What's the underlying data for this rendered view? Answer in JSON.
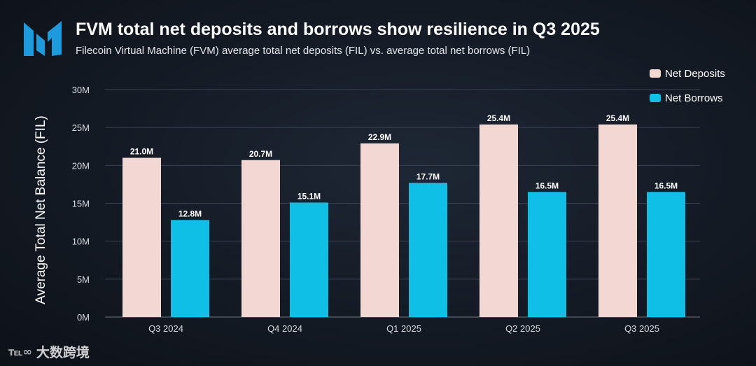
{
  "header": {
    "title": "FVM total net deposits and borrows show resilience in Q3 2025",
    "subtitle": "Filecoin Virtual Machine (FVM) average total net deposits (FIL) vs. average total net borrows (FIL)"
  },
  "logo": {
    "icon": "brand-m-logo-icon",
    "color": "#1e9bdc"
  },
  "legend": {
    "items": [
      {
        "label": "Net Deposits",
        "color": "#f2d7d3"
      },
      {
        "label": "Net Borrows",
        "color": "#10bfe6"
      }
    ]
  },
  "chart_data": {
    "type": "bar",
    "title": "FVM total net deposits and borrows show resilience in Q3 2025",
    "subtitle": "Filecoin Virtual Machine (FVM) average total net deposits (FIL) vs. average total net borrows (FIL)",
    "xlabel": "",
    "ylabel": "Average Total Net Balance (FIL)",
    "categories": [
      "Q3 2024",
      "Q4 2024",
      "Q1 2025",
      "Q2 2025",
      "Q3 2025"
    ],
    "series": [
      {
        "name": "Net Deposits",
        "color": "#f2d7d3",
        "values": [
          21.0,
          20.7,
          22.9,
          25.4,
          25.4
        ],
        "labels": [
          "21.0M",
          "20.7M",
          "22.9M",
          "25.4M",
          "25.4M"
        ]
      },
      {
        "name": "Net Borrows",
        "color": "#10bfe6",
        "values": [
          12.8,
          15.1,
          17.7,
          16.5,
          16.5
        ],
        "labels": [
          "12.8M",
          "15.1M",
          "17.7M",
          "16.5M",
          "16.5M"
        ]
      }
    ],
    "ylim": [
      0,
      30
    ],
    "yticks": [
      0,
      5,
      10,
      15,
      20,
      25,
      30
    ],
    "ytick_labels": [
      "0M",
      "5M",
      "10M",
      "15M",
      "20M",
      "25M",
      "30M"
    ],
    "grid": true,
    "legend_position": "top-right"
  },
  "watermark": {
    "icon": "brand-glyph-icon",
    "glyph": "℡∞",
    "text": "大数跨境"
  }
}
